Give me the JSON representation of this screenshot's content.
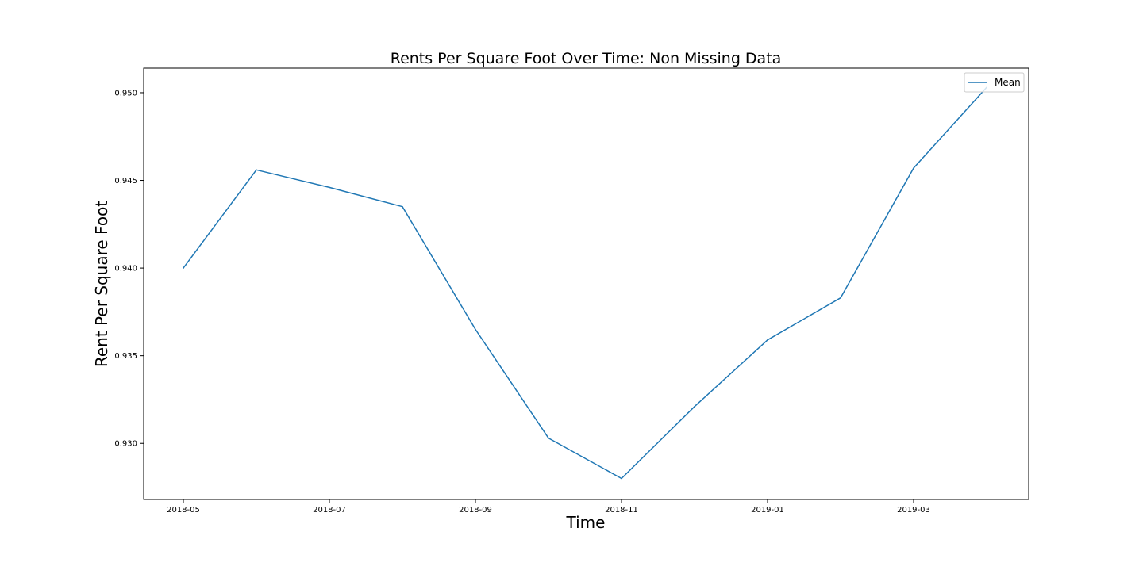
{
  "chart_data": {
    "type": "line",
    "title": "Rents Per Square Foot Over Time: Non Missing Data",
    "xlabel": "Time",
    "ylabel": "Rent Per Square Foot",
    "x": [
      "2018-05",
      "2018-06",
      "2018-07",
      "2018-08",
      "2018-09",
      "2018-10",
      "2018-11",
      "2018-12",
      "2019-01",
      "2019-02",
      "2019-03",
      "2019-04"
    ],
    "series": [
      {
        "name": "Mean",
        "color": "#1f77b4",
        "values": [
          0.94,
          0.9456,
          0.9446,
          0.9435,
          0.9365,
          0.9303,
          0.928,
          0.9321,
          0.9359,
          0.9383,
          0.9457,
          0.9503
        ]
      }
    ],
    "xticks": [
      "2018-05",
      "2018-07",
      "2018-09",
      "2018-11",
      "2019-01",
      "2019-03"
    ],
    "yticks": [
      "0.930",
      "0.935",
      "0.940",
      "0.945",
      "0.950"
    ],
    "ylim": [
      0.9268,
      0.9514
    ],
    "grid": false,
    "legend": "top-right"
  }
}
